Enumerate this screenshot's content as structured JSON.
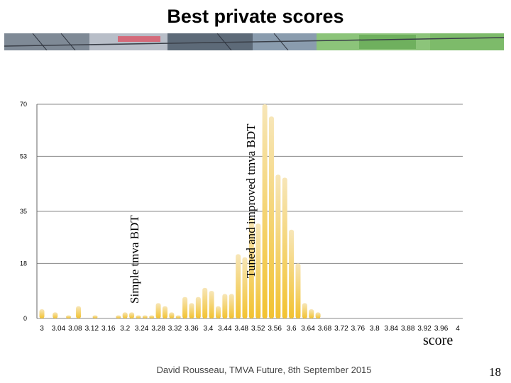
{
  "slide": {
    "title": "Best private scores",
    "footer": "David Rousseau,    TMVA Future, 8th September 2015",
    "page_number": "18"
  },
  "chart_data": {
    "type": "bar",
    "xlabel": "score",
    "ylabel": "",
    "yticks": [
      0,
      18,
      35,
      53,
      70
    ],
    "ylim": [
      0,
      70
    ],
    "grid": true,
    "xticks": [
      "3",
      "3.04",
      "3.08",
      "3.12",
      "3.16",
      "3.2",
      "3.24",
      "3.28",
      "3.32",
      "3.36",
      "3.4",
      "3.44",
      "3.48",
      "3.52",
      "3.56",
      "3.6",
      "3.64",
      "3.68",
      "3.72",
      "3.76",
      "3.8",
      "3.84",
      "3.88",
      "3.92",
      "3.96",
      "4"
    ],
    "x": [
      3.0,
      3.016,
      3.032,
      3.048,
      3.064,
      3.088,
      3.112,
      3.128,
      3.144,
      3.168,
      3.184,
      3.2,
      3.216,
      3.232,
      3.248,
      3.264,
      3.28,
      3.296,
      3.312,
      3.328,
      3.344,
      3.36,
      3.376,
      3.392,
      3.408,
      3.424,
      3.44,
      3.456,
      3.472,
      3.488,
      3.504,
      3.52,
      3.536,
      3.552,
      3.568,
      3.584,
      3.6,
      3.616,
      3.632,
      3.648,
      3.664,
      3.68,
      3.696,
      3.712,
      3.728,
      3.744,
      3.76,
      3.776,
      3.792,
      3.808
    ],
    "values": [
      3,
      0,
      2,
      0,
      1,
      4,
      0,
      1,
      0,
      0,
      1,
      2,
      2,
      1,
      1,
      1,
      5,
      4,
      2,
      1,
      7,
      5,
      7,
      10,
      9,
      4,
      8,
      8,
      21,
      20,
      33,
      31,
      70,
      66,
      47,
      46,
      29,
      18,
      5,
      3,
      2,
      0,
      0,
      0,
      0,
      0,
      0,
      0,
      0,
      0
    ],
    "bar_color_top": "#f7e6b8",
    "bar_color_bottom": "#f2c230",
    "annotations": [
      {
        "text": "Simple tmva BDT",
        "x": 3.24
      },
      {
        "text": "Tuned and improved tmva BDT",
        "x": 3.46
      }
    ]
  }
}
